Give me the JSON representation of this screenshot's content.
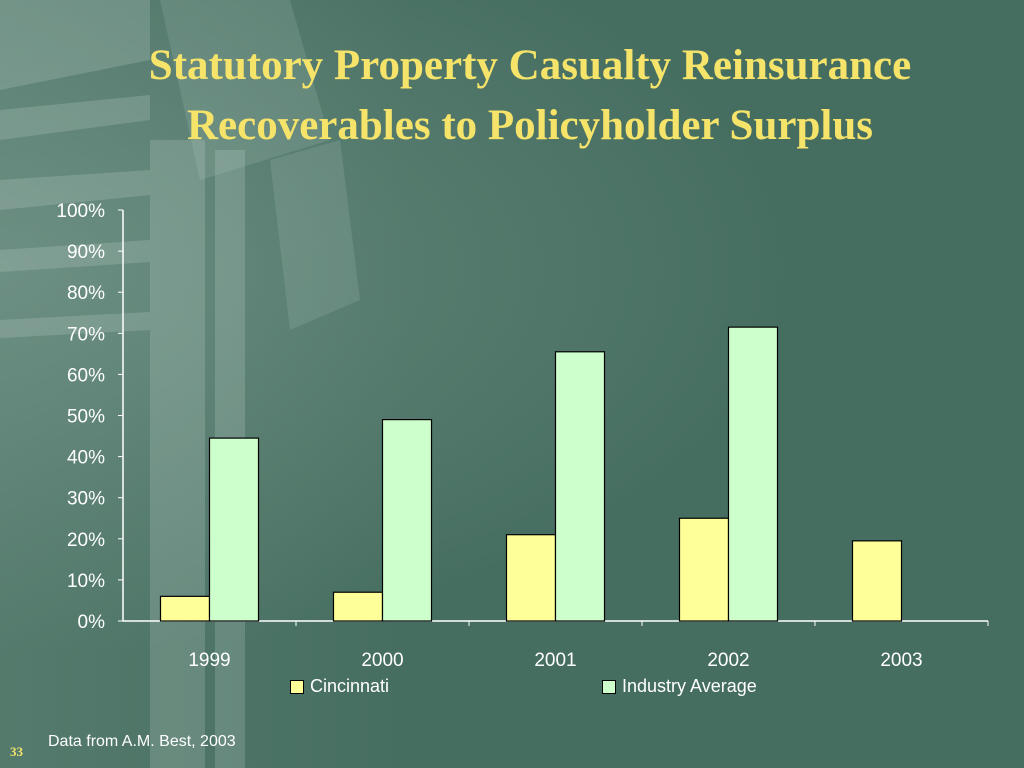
{
  "slide": {
    "title_line1": "Statutory Property Casualty Reinsurance",
    "title_line2": "Recoverables to Policyholder Surplus",
    "source_note": "Data from A.M. Best, 2003",
    "page_number": "33"
  },
  "colors": {
    "background": "#466e60",
    "title": "#f5e36a",
    "cincinnati": "#ffff99",
    "industry_average": "#ccffcc"
  },
  "chart_data": {
    "type": "bar",
    "categories": [
      "1999",
      "2000",
      "2001",
      "2002",
      "2003"
    ],
    "series": [
      {
        "name": "Cincinnati",
        "values": [
          6,
          7,
          21,
          25,
          19.5
        ]
      },
      {
        "name": "Industry Average",
        "values": [
          44.5,
          49,
          65.5,
          71.5,
          null
        ]
      }
    ],
    "ylim": [
      0,
      100
    ],
    "yticks": [
      "0%",
      "10%",
      "20%",
      "30%",
      "40%",
      "50%",
      "60%",
      "70%",
      "80%",
      "90%",
      "100%"
    ],
    "legend_position": "bottom",
    "grid": false
  }
}
